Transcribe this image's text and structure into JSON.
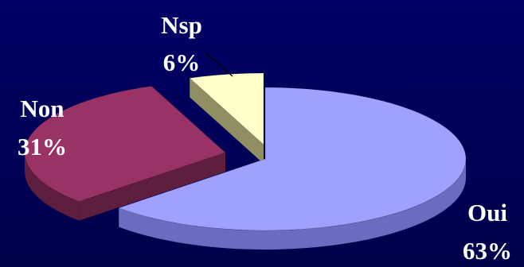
{
  "chart_data": {
    "type": "pie",
    "style": "3d-exploded",
    "slices": [
      {
        "label": "Oui",
        "value": 63,
        "value_label": "63%",
        "color": "#a0a0ff",
        "side_color": "#6b6bbf"
      },
      {
        "label": "Non",
        "value": 31,
        "value_label": "31%",
        "color": "#993366",
        "side_color": "#5e1e3e"
      },
      {
        "label": "Nsp",
        "value": 6,
        "value_label": "6%",
        "color": "#ffffcc",
        "side_color": "#8f8f63"
      }
    ],
    "background_color": "#000066",
    "label_color": "#ffffff",
    "legend": "none"
  }
}
